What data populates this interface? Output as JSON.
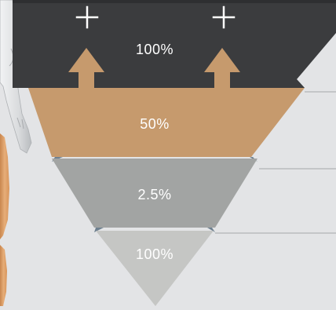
{
  "colors": {
    "background": "#e3e4e6",
    "tier_top": "#3b3c3e",
    "tier_second": "#c69a6d",
    "tier_third": "#a2a4a3",
    "tier_bottom": "#c5c6c4",
    "arrow": "#c69a6d",
    "plus": "#ffffff",
    "connector": "#6f8190",
    "guide_line": "#b9bbbe",
    "figure_skin": "#dda36f",
    "figure_skeleton": "#d8dadc"
  },
  "icons": {
    "plus": "plus-icon",
    "arrow": "arrow-up-icon"
  },
  "tiers": [
    {
      "label": "100%"
    },
    {
      "label": "50%"
    },
    {
      "label": "2.5%"
    },
    {
      "label": "100%"
    }
  ]
}
